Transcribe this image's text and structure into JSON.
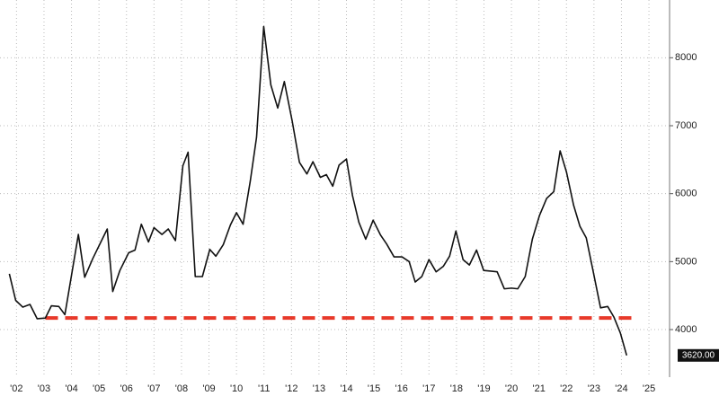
{
  "chart_data": {
    "type": "line",
    "x": [
      2001.74,
      2001.97,
      2002.23,
      2002.49,
      2002.75,
      2003.05,
      2003.27,
      2003.54,
      2003.76,
      2004.25,
      2004.48,
      2004.78,
      2005.07,
      2005.3,
      2005.5,
      2005.76,
      2006.08,
      2006.31,
      2006.54,
      2006.8,
      2007.0,
      2007.29,
      2007.52,
      2007.78,
      2008.05,
      2008.24,
      2008.5,
      2008.76,
      2009.03,
      2009.25,
      2009.52,
      2009.78,
      2010.0,
      2010.24,
      2010.5,
      2010.73,
      2010.99,
      2011.25,
      2011.5,
      2011.74,
      2012.03,
      2012.29,
      2012.56,
      2012.78,
      2013.05,
      2013.27,
      2013.5,
      2013.73,
      2014.0,
      2014.22,
      2014.45,
      2014.7,
      2014.97,
      2015.24,
      2015.46,
      2015.73,
      2016.02,
      2016.28,
      2016.5,
      2016.74,
      2017.0,
      2017.26,
      2017.52,
      2017.75,
      2017.98,
      2018.24,
      2018.47,
      2018.73,
      2018.99,
      2019.25,
      2019.48,
      2019.74,
      2020.0,
      2020.23,
      2020.5,
      2020.76,
      2021.02,
      2021.28,
      2021.54,
      2021.77,
      2022.0,
      2022.26,
      2022.49,
      2022.72,
      2022.95,
      2023.24,
      2023.5,
      2023.73,
      2023.96,
      2024.19
    ],
    "series": [
      {
        "color": "#111111",
        "values": [
          4820,
          4430,
          4330,
          4370,
          4160,
          4170,
          4350,
          4340,
          4220,
          5400,
          4770,
          5050,
          5290,
          5480,
          4560,
          4870,
          5130,
          5170,
          5550,
          5290,
          5500,
          5400,
          5480,
          5310,
          6410,
          6610,
          4780,
          4780,
          5180,
          5080,
          5250,
          5540,
          5720,
          5550,
          6180,
          6830,
          8460,
          7600,
          7260,
          7650,
          7060,
          6460,
          6290,
          6470,
          6240,
          6280,
          6110,
          6420,
          6510,
          5970,
          5580,
          5330,
          5610,
          5390,
          5260,
          5070,
          5070,
          5000,
          4700,
          4780,
          5030,
          4850,
          4930,
          5080,
          5450,
          5030,
          4950,
          5170,
          4870,
          4860,
          4850,
          4600,
          4610,
          4600,
          4780,
          5330,
          5680,
          5930,
          6030,
          6630,
          6320,
          5830,
          5520,
          5350,
          4900,
          4320,
          4340,
          4180,
          3950,
          3620
        ]
      }
    ],
    "end_label": {
      "value": 3620,
      "label": "3620.00"
    },
    "reference_line": {
      "value": 4170,
      "x": [
        2003.05,
        2024.55
      ],
      "color": "#e8392a"
    },
    "xlim": [
      2001.4,
      2025.75
    ],
    "xticks": [
      {
        "value": 2002,
        "label": "'02"
      },
      {
        "value": 2003,
        "label": "'03"
      },
      {
        "value": 2004,
        "label": "'04"
      },
      {
        "value": 2005,
        "label": "'05"
      },
      {
        "value": 2006,
        "label": "'06"
      },
      {
        "value": 2007,
        "label": "'07"
      },
      {
        "value": 2008,
        "label": "'08"
      },
      {
        "value": 2009,
        "label": "'09"
      },
      {
        "value": 2010,
        "label": "'10"
      },
      {
        "value": 2011,
        "label": "'11"
      },
      {
        "value": 2012,
        "label": "'12"
      },
      {
        "value": 2013,
        "label": "'13"
      },
      {
        "value": 2014,
        "label": "'14"
      },
      {
        "value": 2015,
        "label": "'15"
      },
      {
        "value": 2016,
        "label": "'16"
      },
      {
        "value": 2017,
        "label": "'17"
      },
      {
        "value": 2018,
        "label": "'18"
      },
      {
        "value": 2019,
        "label": "'19"
      },
      {
        "value": 2020,
        "label": "'20"
      },
      {
        "value": 2021,
        "label": "'21"
      },
      {
        "value": 2022,
        "label": "'22"
      },
      {
        "value": 2023,
        "label": "'23"
      },
      {
        "value": 2024,
        "label": "'24"
      },
      {
        "value": 2025,
        "label": "'25"
      }
    ],
    "ylim": [
      3300,
      8850
    ],
    "yticks": [
      4000,
      5000,
      6000,
      7000,
      8000
    ],
    "grid": true
  }
}
